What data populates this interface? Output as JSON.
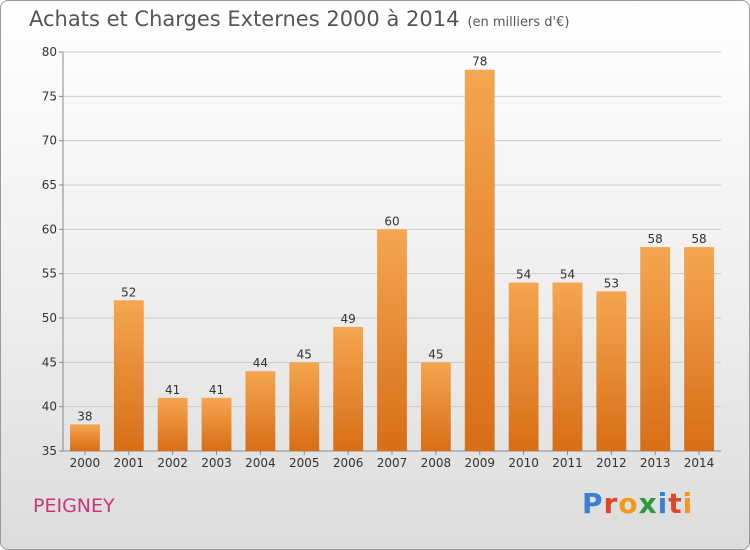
{
  "header": {
    "title": "Achats et Charges Externes 2000 à 2014",
    "unit": "(en milliers d'€)"
  },
  "footer": {
    "commune": "PEIGNEY",
    "logo_letters": [
      "P",
      "r",
      "o",
      "x",
      "i",
      "t",
      "i"
    ],
    "logo_colors": [
      "#3a7fd0",
      "#e0442b",
      "#f09a1a",
      "#2a9a3a",
      "#3a7fd0",
      "#e0442b",
      "#f09a1a"
    ]
  },
  "colors": {
    "bar_top": "#f5a650",
    "bar_bottom": "#d86e16",
    "grid": "#cccccc",
    "axis": "#888888"
  },
  "chart_data": {
    "type": "bar",
    "categories": [
      "2000",
      "2001",
      "2002",
      "2003",
      "2004",
      "2005",
      "2006",
      "2007",
      "2008",
      "2009",
      "2010",
      "2011",
      "2012",
      "2013",
      "2014"
    ],
    "values": [
      38,
      52,
      41,
      41,
      44,
      45,
      49,
      60,
      45,
      78,
      54,
      54,
      53,
      58,
      58
    ],
    "yticks": [
      35,
      40,
      45,
      50,
      55,
      60,
      65,
      70,
      75,
      80
    ],
    "ylim": [
      35,
      80
    ],
    "grid": true,
    "legend": "none"
  }
}
